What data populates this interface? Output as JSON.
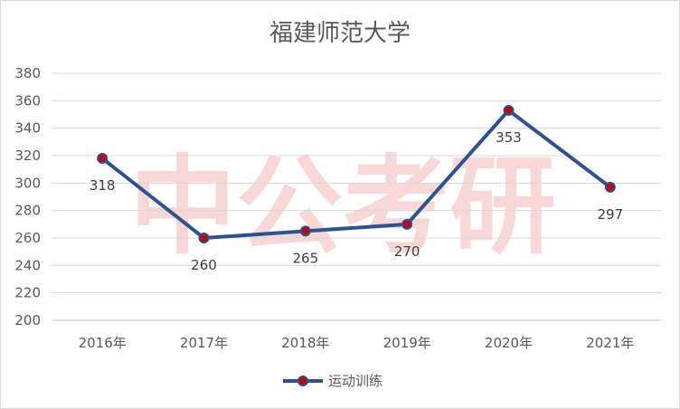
{
  "chart_data": {
    "type": "line",
    "title": "福建师范大学",
    "watermark": "中公考研",
    "categories": [
      "2016年",
      "2017年",
      "2018年",
      "2019年",
      "2020年",
      "2021年"
    ],
    "series": [
      {
        "name": "运动训练",
        "values": [
          318,
          260,
          265,
          270,
          353,
          297
        ],
        "color": "#2F528F",
        "marker_color": "#C00000"
      }
    ],
    "ylim": [
      200,
      380
    ],
    "yticks": [
      200,
      220,
      240,
      260,
      280,
      300,
      320,
      340,
      360,
      380
    ],
    "grid": true,
    "data_labels": true,
    "legend": "bottom"
  }
}
